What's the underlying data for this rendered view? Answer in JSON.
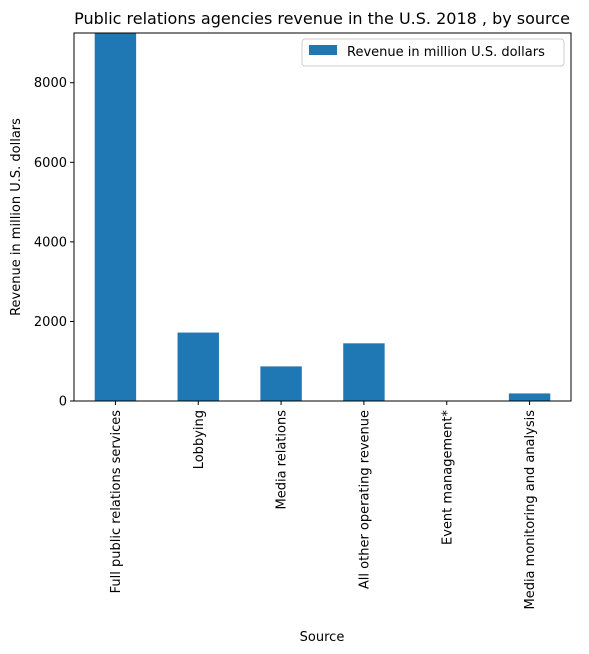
{
  "chart_data": {
    "type": "bar",
    "title": "Public relations agencies revenue in the U.S. 2018 , by source",
    "xlabel": "Source",
    "ylabel": "Revenue in million U.S. dollars",
    "categories": [
      "Full public relations services",
      "Lobbying",
      "Media relations",
      "All other operating revenue",
      "Event management*",
      "Media monitoring and analysis"
    ],
    "series": [
      {
        "name": "Revenue in million U.S. dollars",
        "values": [
          9250,
          1720,
          870,
          1450,
          0,
          190
        ],
        "color": "#1f77b4"
      }
    ],
    "ylim": [
      0,
      9250
    ],
    "yticks": [
      0,
      2000,
      4000,
      6000,
      8000
    ],
    "grid": false,
    "legend": "top-right"
  }
}
